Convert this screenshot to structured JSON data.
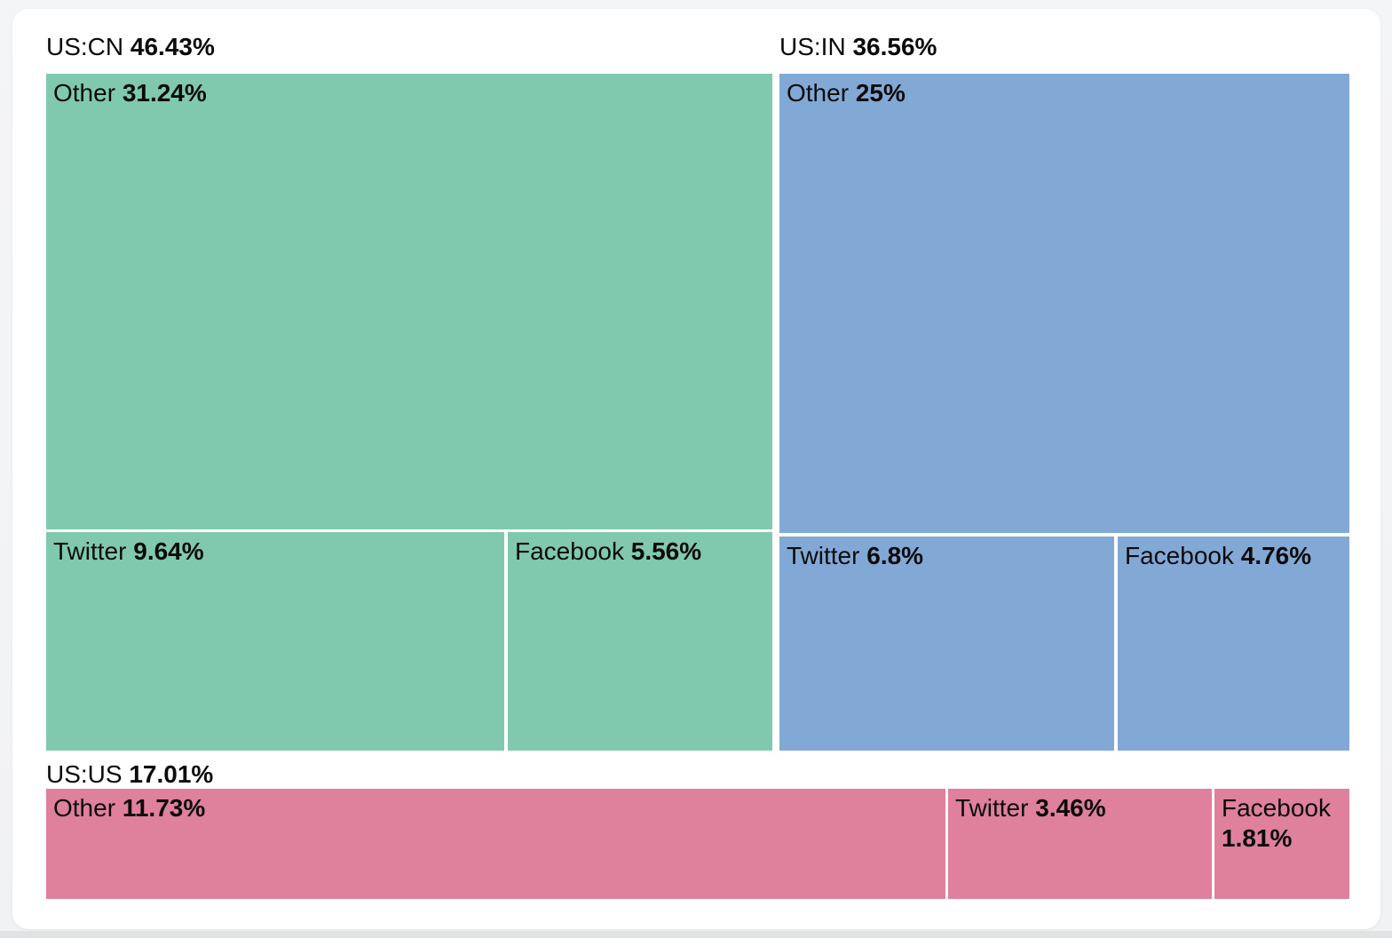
{
  "chart_data": {
    "type": "treemap",
    "layout": "squarified",
    "legend": false,
    "units": "percent",
    "text_color": "#0b0b0b",
    "background_color": "#ffffff",
    "groups": [
      {
        "label": "US:CN",
        "value": 46.43,
        "value_label": "46.43%",
        "color": "#80c9ae",
        "children": [
          {
            "label": "Other",
            "value": 31.24,
            "value_label": "31.24%"
          },
          {
            "label": "Twitter",
            "value": 9.64,
            "value_label": "9.64%"
          },
          {
            "label": "Facebook",
            "value": 5.56,
            "value_label": "5.56%"
          }
        ]
      },
      {
        "label": "US:IN",
        "value": 36.56,
        "value_label": "36.56%",
        "color": "#82a9d6",
        "children": [
          {
            "label": "Other",
            "value": 25,
            "value_label": "25%"
          },
          {
            "label": "Twitter",
            "value": 6.8,
            "value_label": "6.8%"
          },
          {
            "label": "Facebook",
            "value": 4.76,
            "value_label": "4.76%"
          }
        ]
      },
      {
        "label": "US:US",
        "value": 17.01,
        "value_label": "17.01%",
        "color": "#df809c",
        "children": [
          {
            "label": "Other",
            "value": 11.73,
            "value_label": "11.73%"
          },
          {
            "label": "Twitter",
            "value": 3.46,
            "value_label": "3.46%"
          },
          {
            "label": "Facebook",
            "value": 1.81,
            "value_label": "1.81%"
          }
        ]
      }
    ]
  }
}
